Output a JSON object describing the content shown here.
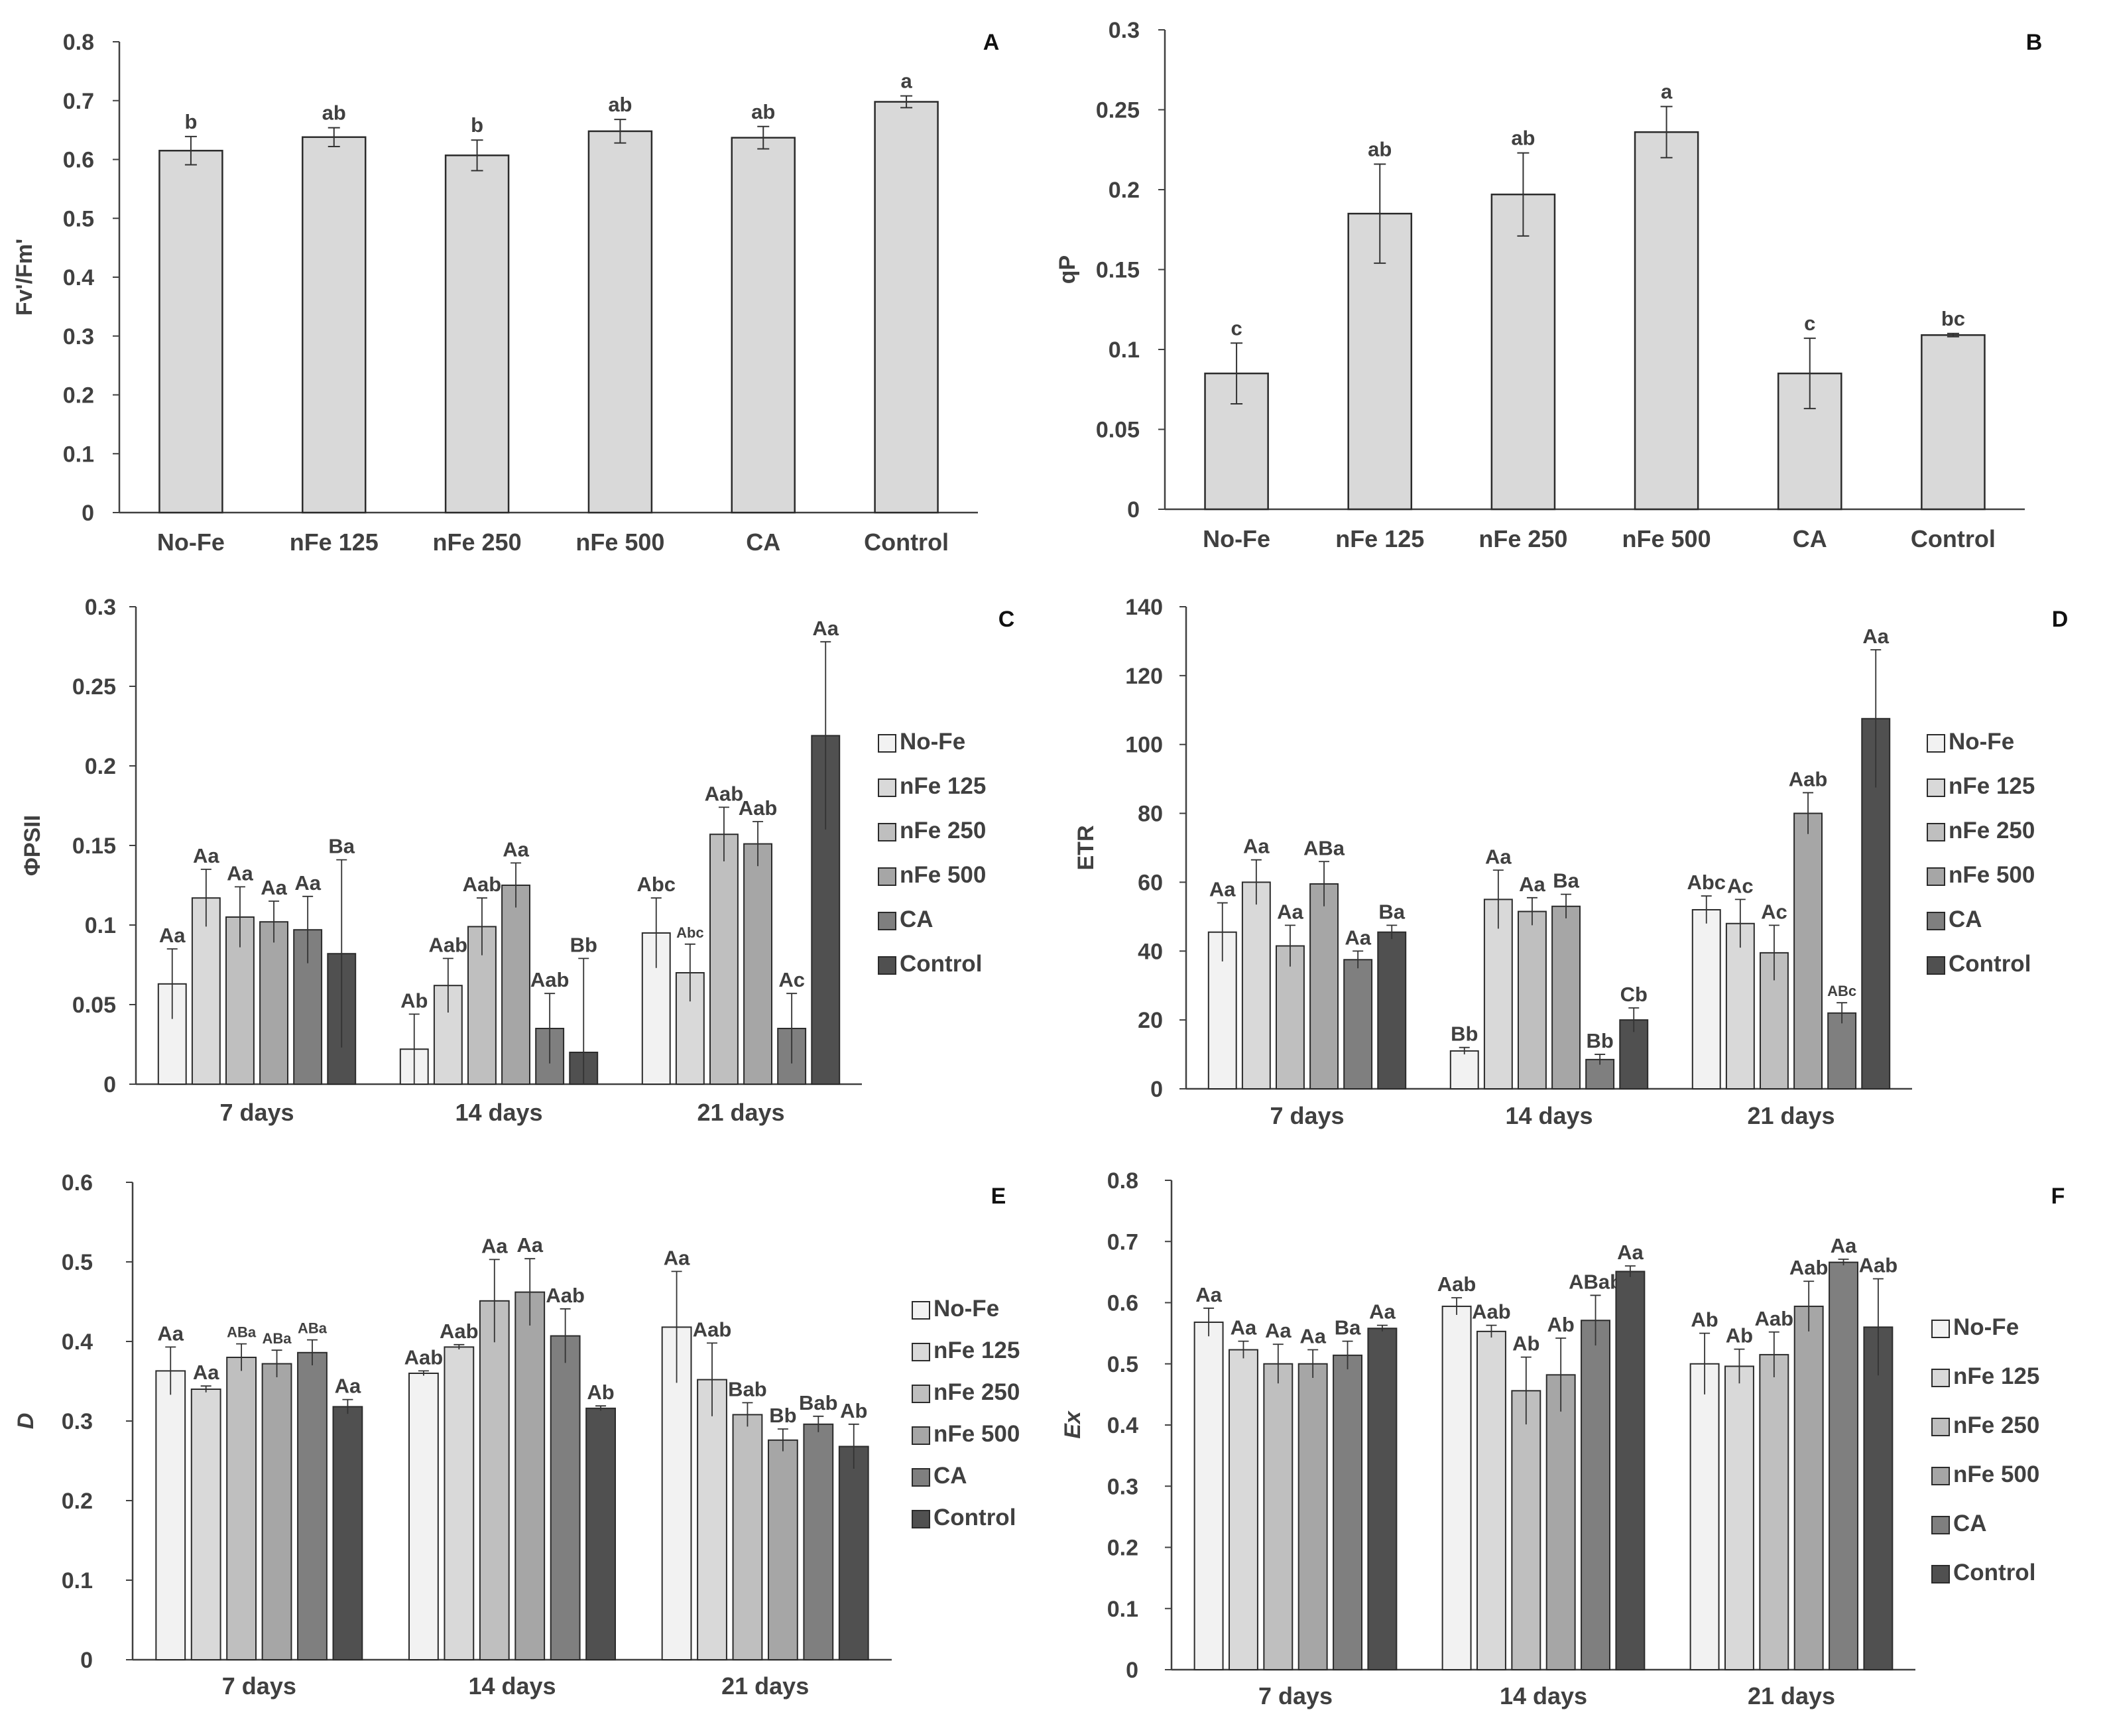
{
  "colors": {
    "No-Fe": "#f2f2f2",
    "nFe 125": "#d9d9d9",
    "nFe 250": "#bfbfbf",
    "nFe 500": "#a6a6a6",
    "CA": "#7f7f7f",
    "Control": "#505050",
    "single": "#d9d9d9",
    "axis": "#404040"
  },
  "chart_data": [
    {
      "type": "bar",
      "panel": "A",
      "title": "",
      "ylabel": "Fv'/Fm'",
      "xlabel": "",
      "ylim": [
        0,
        0.8
      ],
      "yticks": [
        0,
        0.1,
        0.2,
        0.3,
        0.4,
        0.5,
        0.6,
        0.7,
        0.8
      ],
      "ytick_labels": [
        "0",
        "0.1",
        "0.2",
        "0.3",
        "0.4",
        "0.5",
        "0.6",
        "0.7",
        "0.8"
      ],
      "categories": [
        "No-Fe",
        "nFe 125",
        "nFe 250",
        "nFe 500",
        "CA",
        "Control"
      ],
      "values": [
        0.615,
        0.638,
        0.607,
        0.648,
        0.637,
        0.698
      ],
      "errors": [
        0.024,
        0.016,
        0.026,
        0.02,
        0.019,
        0.01
      ],
      "labels": [
        "b",
        "ab",
        "b",
        "ab",
        "ab",
        "a"
      ]
    },
    {
      "type": "bar",
      "panel": "B",
      "title": "",
      "ylabel": "qP",
      "xlabel": "",
      "ylim": [
        0,
        0.3
      ],
      "yticks": [
        0,
        0.05,
        0.1,
        0.15,
        0.2,
        0.25,
        0.3
      ],
      "ytick_labels": [
        "0",
        "0.05",
        "0.1",
        "0.15",
        "0.2",
        "0.25",
        "0.3"
      ],
      "categories": [
        "No-Fe",
        "nFe 125",
        "nFe 250",
        "nFe 500",
        "CA",
        "Control"
      ],
      "values": [
        0.085,
        0.185,
        0.197,
        0.236,
        0.085,
        0.109
      ],
      "errors": [
        0.019,
        0.031,
        0.026,
        0.016,
        0.022,
        0.001
      ],
      "labels": [
        "c",
        "ab",
        "ab",
        "a",
        "c",
        "bc"
      ]
    },
    {
      "type": "bar",
      "panel": "C",
      "title": "",
      "ylabel": "ΦPSII",
      "xlabel": "",
      "ylim": [
        0,
        0.3
      ],
      "yticks": [
        0,
        0.05,
        0.1,
        0.15,
        0.2,
        0.25,
        0.3
      ],
      "ytick_labels": [
        "0",
        "0.05",
        "0.1",
        "0.15",
        "0.2",
        "0.25",
        "0.3"
      ],
      "categories": [
        "7 days",
        "14 days",
        "21 days"
      ],
      "series": [
        {
          "name": "No-Fe",
          "values": [
            0.063,
            0.022,
            0.095
          ],
          "errors": [
            0.022,
            0.022,
            0.022
          ],
          "labels": [
            "Aa",
            "Ab",
            "Abc"
          ]
        },
        {
          "name": "nFe 125",
          "values": [
            0.117,
            0.062,
            0.07
          ],
          "errors": [
            0.018,
            0.017,
            0.018
          ],
          "labels": [
            "Aa",
            "Aab",
            "Abc"
          ]
        },
        {
          "name": "nFe 250",
          "values": [
            0.105,
            0.099,
            0.157
          ],
          "errors": [
            0.019,
            0.018,
            0.017
          ],
          "labels": [
            "Aa",
            "Aab",
            "Aab"
          ]
        },
        {
          "name": "nFe 500",
          "values": [
            0.102,
            0.125,
            0.151
          ],
          "errors": [
            0.013,
            0.014,
            0.014
          ],
          "labels": [
            "Aa",
            "Aa",
            "Aab"
          ]
        },
        {
          "name": "CA",
          "values": [
            0.097,
            0.035,
            0.035
          ],
          "errors": [
            0.021,
            0.022,
            0.022
          ],
          "labels": [
            "Aa",
            "Aab",
            "Ac"
          ]
        },
        {
          "name": "Control",
          "values": [
            0.082,
            0.02,
            0.219
          ],
          "errors": [
            0.059,
            0.059,
            0.059
          ],
          "labels": [
            "Ba",
            "Bb",
            "Aa"
          ]
        }
      ]
    },
    {
      "type": "bar",
      "panel": "D",
      "title": "",
      "ylabel": "ETR",
      "xlabel": "",
      "ylim": [
        0,
        140
      ],
      "yticks": [
        0,
        20,
        40,
        60,
        80,
        100,
        120,
        140
      ],
      "ytick_labels": [
        "0",
        "20",
        "40",
        "60",
        "80",
        "100",
        "120",
        "140"
      ],
      "categories": [
        "7 days",
        "14 days",
        "21 days"
      ],
      "series": [
        {
          "name": "No-Fe",
          "values": [
            45.5,
            11,
            52
          ],
          "errors": [
            8.5,
            1,
            4
          ],
          "labels": [
            "Aa",
            "Bb",
            "Abc"
          ]
        },
        {
          "name": "nFe 125",
          "values": [
            60,
            55,
            48
          ],
          "errors": [
            6.5,
            8.5,
            7
          ],
          "labels": [
            "Aa",
            "Aa",
            "Ac"
          ]
        },
        {
          "name": "nFe 250",
          "values": [
            41.5,
            51.5,
            39.5
          ],
          "errors": [
            6,
            4,
            8
          ],
          "labels": [
            "Aa",
            "Aa",
            "Ac"
          ]
        },
        {
          "name": "nFe 500",
          "values": [
            59.5,
            53,
            80
          ],
          "errors": [
            6.5,
            3.5,
            6
          ],
          "labels": [
            "ABa",
            "Ba",
            "Aab"
          ]
        },
        {
          "name": "CA",
          "values": [
            37.5,
            8.5,
            22
          ],
          "errors": [
            2.5,
            1.5,
            3
          ],
          "labels": [
            "Aa",
            "Bb",
            "ABc"
          ]
        },
        {
          "name": "Control",
          "values": [
            45.5,
            20,
            107.5
          ],
          "errors": [
            2,
            3.5,
            20
          ],
          "labels": [
            "Ba",
            "Cb",
            "Aa"
          ]
        }
      ]
    },
    {
      "type": "bar",
      "panel": "E",
      "title": "",
      "ylabel": "D",
      "xlabel": "",
      "ylim": [
        0,
        0.6
      ],
      "yticks": [
        0,
        0.1,
        0.2,
        0.3,
        0.4,
        0.5,
        0.6
      ],
      "ytick_labels": [
        "0",
        "0.1",
        "0.2",
        "0.3",
        "0.4",
        "0.5",
        "0.6"
      ],
      "categories": [
        "7 days",
        "14 days",
        "21 days"
      ],
      "series": [
        {
          "name": "No-Fe",
          "values": [
            0.363,
            0.36,
            0.418
          ],
          "errors": [
            0.03,
            0.003,
            0.07
          ],
          "labels": [
            "Aa",
            "Aab",
            "Aa"
          ]
        },
        {
          "name": "nFe 125",
          "values": [
            0.34,
            0.393,
            0.352
          ],
          "errors": [
            0.004,
            0.003,
            0.046
          ],
          "labels": [
            "Aa",
            "Aab",
            "Aab"
          ]
        },
        {
          "name": "nFe 250",
          "values": [
            0.38,
            0.451,
            0.308
          ],
          "errors": [
            0.017,
            0.052,
            0.015
          ],
          "labels": [
            "ABa",
            "Aa",
            "Bab"
          ]
        },
        {
          "name": "nFe 500",
          "values": [
            0.372,
            0.462,
            0.276
          ],
          "errors": [
            0.017,
            0.042,
            0.014
          ],
          "labels": [
            "ABa",
            "Aa",
            "Bb"
          ]
        },
        {
          "name": "CA",
          "values": [
            0.386,
            0.407,
            0.296
          ],
          "errors": [
            0.016,
            0.034,
            0.01
          ],
          "labels": [
            "ABa",
            "Aab",
            "Bab"
          ]
        },
        {
          "name": "Control",
          "values": [
            0.318,
            0.316,
            0.268
          ],
          "errors": [
            0.009,
            0.003,
            0.028
          ],
          "labels": [
            "Aa",
            "Ab",
            "Ab"
          ]
        }
      ]
    },
    {
      "type": "bar",
      "panel": "F",
      "title": "",
      "ylabel": "Ex",
      "xlabel": "",
      "ylim": [
        0,
        0.8
      ],
      "yticks": [
        0,
        0.1,
        0.2,
        0.3,
        0.4,
        0.5,
        0.6,
        0.7,
        0.8
      ],
      "ytick_labels": [
        "0",
        "0.1",
        "0.2",
        "0.3",
        "0.4",
        "0.5",
        "0.6",
        "0.7",
        "0.8"
      ],
      "categories": [
        "7 days",
        "14 days",
        "21 days"
      ],
      "series": [
        {
          "name": "No-Fe",
          "values": [
            0.568,
            0.594,
            0.5
          ],
          "errors": [
            0.023,
            0.014,
            0.05
          ],
          "labels": [
            "Aa",
            "Aab",
            "Ab"
          ]
        },
        {
          "name": "nFe 125",
          "values": [
            0.523,
            0.553,
            0.496
          ],
          "errors": [
            0.014,
            0.01,
            0.028
          ],
          "labels": [
            "Aa",
            "Aab",
            "Ab"
          ]
        },
        {
          "name": "nFe 250",
          "values": [
            0.5,
            0.456,
            0.515
          ],
          "errors": [
            0.032,
            0.055,
            0.037
          ],
          "labels": [
            "Aa",
            "Ab",
            "Aab"
          ]
        },
        {
          "name": "nFe 500",
          "values": [
            0.5,
            0.482,
            0.594
          ],
          "errors": [
            0.023,
            0.06,
            0.041
          ],
          "labels": [
            "Aa",
            "Ab",
            "Aab"
          ]
        },
        {
          "name": "CA",
          "values": [
            0.514,
            0.571,
            0.666
          ],
          "errors": [
            0.023,
            0.041,
            0.005
          ],
          "labels": [
            "Ba",
            "ABab",
            "Aa"
          ]
        },
        {
          "name": "Control",
          "values": [
            0.558,
            0.651,
            0.56
          ],
          "errors": [
            0.005,
            0.009,
            0.079
          ],
          "labels": [
            "Aa",
            "Aa",
            "Aab"
          ]
        }
      ]
    }
  ]
}
